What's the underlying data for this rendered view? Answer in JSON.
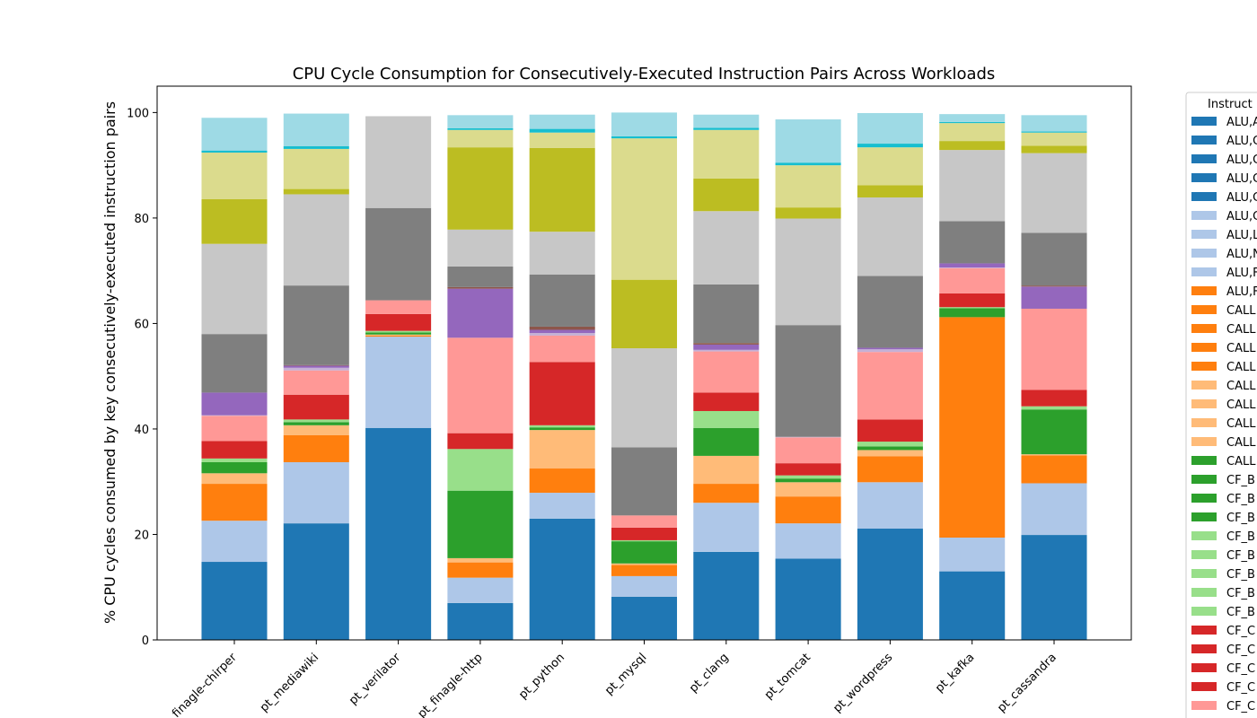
{
  "chart_data": {
    "type": "bar",
    "stacked": true,
    "title": "CPU Cycle Consumption for Consecutively-Executed Instruction Pairs Across Workloads",
    "xlabel": "",
    "ylabel": "% CPU cycles consumed by key consecutively-executed instruction pairs",
    "ylim": [
      0,
      105
    ],
    "yticks": [
      0,
      20,
      40,
      60,
      80,
      100
    ],
    "grid": false,
    "legend_position": "right (partially cut off)",
    "legend_title": "Instruct",
    "legend_entries": [
      "ALU,A",
      "ALU,C",
      "ALU,C",
      "ALU,C",
      "ALU,C",
      "ALU,C",
      "ALU,L",
      "ALU,N",
      "ALU,F",
      "ALU,F",
      "CALL",
      "CALL",
      "CALL",
      "CALL",
      "CALL",
      "CALL",
      "CALL",
      "CALL",
      "CALL",
      "CF_B",
      "CF_B",
      "CF_B",
      "CF_B",
      "CF_B",
      "CF_B",
      "CF_B",
      "CF_B",
      "CF_C",
      "CF_C",
      "CF_C",
      "CF_C",
      "CF_C"
    ],
    "legend_colors": [
      "#1f77b4",
      "#1f77b4",
      "#1f77b4",
      "#1f77b4",
      "#1f77b4",
      "#aec7e8",
      "#aec7e8",
      "#aec7e8",
      "#aec7e8",
      "#ff7f0e",
      "#ff7f0e",
      "#ff7f0e",
      "#ff7f0e",
      "#ff7f0e",
      "#ffbb78",
      "#ffbb78",
      "#ffbb78",
      "#ffbb78",
      "#2ca02c",
      "#2ca02c",
      "#2ca02c",
      "#2ca02c",
      "#98df8a",
      "#98df8a",
      "#98df8a",
      "#98df8a",
      "#98df8a",
      "#d62728",
      "#d62728",
      "#d62728",
      "#d62728",
      "#ff9896"
    ],
    "categories": [
      "finagle-chirper",
      "pt_mediawiki",
      "pt_verilator",
      "pt_finagle-http",
      "pt_python",
      "pt_mysql",
      "pt_clang",
      "pt_tomcat",
      "pt_wordpress",
      "pt_kafka",
      "pt_cassandra"
    ],
    "series": [
      {
        "color": "#1f77b4",
        "values": [
          14.8,
          22.1,
          40.2,
          7.0,
          23.0,
          8.2,
          16.7,
          15.4,
          21.1,
          13.0,
          19.9
        ]
      },
      {
        "color": "#aec7e8",
        "values": [
          7.8,
          11.6,
          17.3,
          4.8,
          4.9,
          3.9,
          9.3,
          6.7,
          8.8,
          6.4,
          9.8
        ]
      },
      {
        "color": "#ff7f0e",
        "values": [
          7.0,
          5.1,
          0.2,
          2.9,
          4.6,
          2.1,
          3.6,
          5.1,
          4.9,
          41.8,
          5.3
        ]
      },
      {
        "color": "#ffbb78",
        "values": [
          2.0,
          1.9,
          0.2,
          0.8,
          7.3,
          0.3,
          5.3,
          2.7,
          1.2,
          0.0,
          0.2
        ]
      },
      {
        "color": "#2ca02c",
        "values": [
          2.1,
          0.6,
          0.4,
          12.8,
          0.5,
          4.2,
          5.3,
          0.7,
          0.7,
          1.7,
          8.5
        ]
      },
      {
        "color": "#98df8a",
        "values": [
          0.7,
          0.5,
          0.3,
          7.9,
          0.4,
          0.2,
          3.2,
          0.6,
          0.9,
          0.2,
          0.6
        ]
      },
      {
        "color": "#d62728",
        "values": [
          3.3,
          4.7,
          3.2,
          3.0,
          12.0,
          2.4,
          3.5,
          2.3,
          4.2,
          2.6,
          3.1
        ]
      },
      {
        "color": "#ff9896",
        "values": [
          4.8,
          4.6,
          2.6,
          18.1,
          5.0,
          2.3,
          7.8,
          4.9,
          12.8,
          4.8,
          15.4
        ]
      },
      {
        "color": "#c5b0d5",
        "values": [
          0.1,
          0.5,
          0.0,
          0.0,
          0.5,
          0.0,
          0.3,
          0.1,
          0.5,
          0.1,
          0.0
        ]
      },
      {
        "color": "#9467bd",
        "values": [
          4.3,
          0.4,
          0.0,
          9.3,
          0.6,
          0.0,
          1.0,
          0.0,
          0.3,
          0.8,
          4.2
        ]
      },
      {
        "color": "#8c564b",
        "values": [
          0.0,
          0.1,
          0.0,
          0.3,
          0.6,
          0.0,
          0.3,
          0.0,
          0.0,
          0.0,
          0.2
        ]
      },
      {
        "color": "#7f7f7f",
        "values": [
          11.1,
          15.1,
          17.5,
          3.9,
          9.9,
          12.9,
          11.1,
          21.2,
          13.6,
          8.0,
          10.0
        ]
      },
      {
        "color": "#c7c7c7",
        "values": [
          17.1,
          17.3,
          17.4,
          7.0,
          8.1,
          18.8,
          13.9,
          20.2,
          14.9,
          13.5,
          15.1
        ]
      },
      {
        "color": "#bcbd22",
        "values": [
          8.5,
          1.0,
          0.0,
          15.6,
          15.9,
          13.0,
          6.2,
          2.1,
          2.3,
          1.7,
          1.4
        ]
      },
      {
        "color": "#dbdb8d",
        "values": [
          8.8,
          7.6,
          0.0,
          3.3,
          2.9,
          26.8,
          9.2,
          8.0,
          7.2,
          3.4,
          2.5
        ]
      },
      {
        "color": "#17becf",
        "values": [
          0.4,
          0.5,
          0.0,
          0.3,
          0.7,
          0.4,
          0.4,
          0.5,
          0.7,
          0.2,
          0.2
        ]
      },
      {
        "color": "#9edae5",
        "values": [
          6.2,
          6.2,
          0.0,
          2.5,
          2.7,
          4.5,
          2.5,
          8.2,
          5.8,
          1.5,
          3.1
        ]
      }
    ]
  }
}
